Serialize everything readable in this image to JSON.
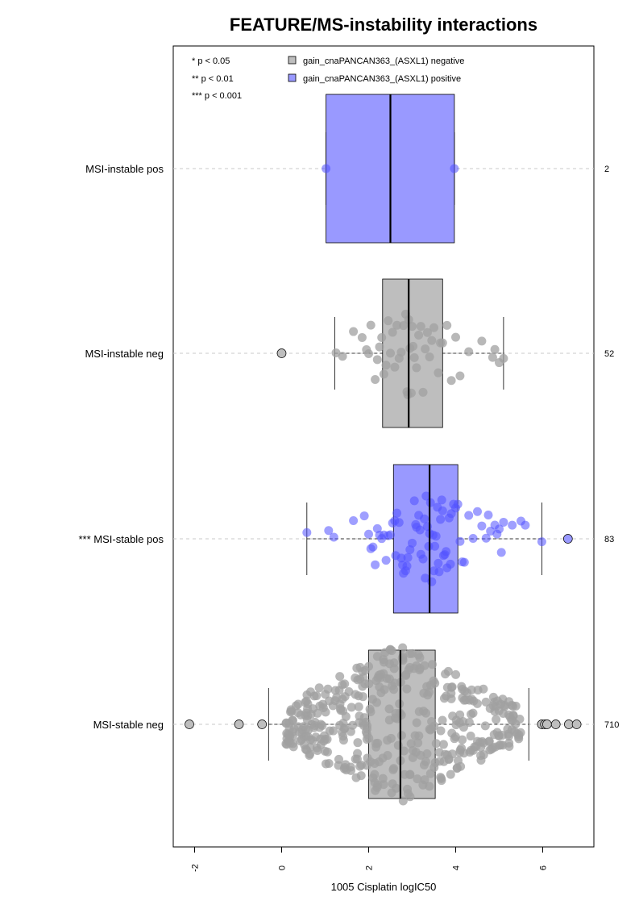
{
  "chart_data": {
    "type": "box",
    "title": "FEATURE/MS-instability interactions",
    "xlabel": "1005 Cisplatin logIC50",
    "xlim": [
      -2.5,
      7.2
    ],
    "xticks": [
      -2,
      0,
      2,
      4,
      6
    ],
    "xtick_labels": [
      "-2",
      "0",
      "2",
      "4",
      "6"
    ],
    "significance_legend": [
      "* p < 0.05",
      "** p < 0.01",
      "*** p < 0.001"
    ],
    "legend": [
      {
        "name": "gain_cnaPANCAN363_(ASXL1) negative",
        "color": "#bebebe"
      },
      {
        "name": "gain_cnaPANCAN363_(ASXL1) positive",
        "color": "#9999ff"
      }
    ],
    "groups": [
      {
        "label": "MSI-instable pos",
        "count": "2",
        "color": "#9999ff",
        "box": {
          "q1": 1.02,
          "median": 2.5,
          "q3": 3.97,
          "whisker_low": 1.02,
          "whisker_high": 3.97
        },
        "outliers": [],
        "points": [
          1.02,
          3.97
        ]
      },
      {
        "label": "MSI-instable neg",
        "count": "52",
        "color": "#bebebe",
        "box": {
          "q1": 2.32,
          "median": 2.92,
          "q3": 3.7,
          "whisker_low": 1.22,
          "whisker_high": 5.1
        },
        "outliers": [
          0.0
        ],
        "points": [
          1.25,
          1.4,
          1.65,
          1.85,
          1.95,
          2.0,
          2.05,
          2.15,
          2.2,
          2.25,
          2.3,
          2.35,
          2.4,
          2.45,
          2.5,
          2.55,
          2.6,
          2.65,
          2.7,
          2.75,
          2.8,
          2.85,
          2.88,
          2.9,
          2.92,
          2.95,
          2.98,
          3.0,
          3.02,
          3.05,
          3.1,
          3.15,
          3.2,
          3.25,
          3.3,
          3.35,
          3.4,
          3.45,
          3.5,
          3.6,
          3.65,
          3.7,
          3.8,
          3.9,
          4.0,
          4.1,
          4.3,
          4.6,
          4.85,
          4.9,
          5.0,
          5.1
        ]
      },
      {
        "label": "*** MSI-stable pos",
        "count": "83",
        "color": "#9999ff",
        "box": {
          "q1": 2.57,
          "median": 3.4,
          "q3": 4.05,
          "whisker_low": 0.58,
          "whisker_high": 5.98
        },
        "outliers": [
          6.58
        ],
        "points": [
          0.58,
          1.08,
          1.2,
          1.65,
          1.9,
          2.0,
          2.05,
          2.1,
          2.15,
          2.2,
          2.25,
          2.3,
          2.35,
          2.4,
          2.45,
          2.5,
          2.55,
          2.6,
          2.62,
          2.65,
          2.7,
          2.75,
          2.78,
          2.8,
          2.85,
          2.88,
          2.9,
          2.95,
          3.0,
          3.05,
          3.08,
          3.1,
          3.15,
          3.18,
          3.2,
          3.25,
          3.28,
          3.3,
          3.32,
          3.35,
          3.38,
          3.4,
          3.42,
          3.45,
          3.48,
          3.5,
          3.52,
          3.55,
          3.58,
          3.6,
          3.62,
          3.65,
          3.68,
          3.7,
          3.72,
          3.75,
          3.78,
          3.8,
          3.85,
          3.88,
          3.9,
          3.95,
          4.0,
          4.05,
          4.1,
          4.15,
          4.2,
          4.3,
          4.4,
          4.5,
          4.6,
          4.7,
          4.75,
          4.8,
          4.9,
          5.0,
          5.05,
          5.1,
          5.3,
          5.5,
          5.98,
          5.6,
          4.95
        ]
      },
      {
        "label": "MSI-stable neg",
        "count": "710",
        "color": "#bebebe",
        "box": {
          "q1": 2.0,
          "median": 2.73,
          "q3": 3.53,
          "whisker_low": -0.3,
          "whisker_high": 5.68
        },
        "outliers": [
          -2.12,
          -0.98,
          -0.45,
          5.98,
          6.05,
          6.1,
          6.3,
          6.6,
          6.78
        ],
        "points": []
      }
    ]
  }
}
